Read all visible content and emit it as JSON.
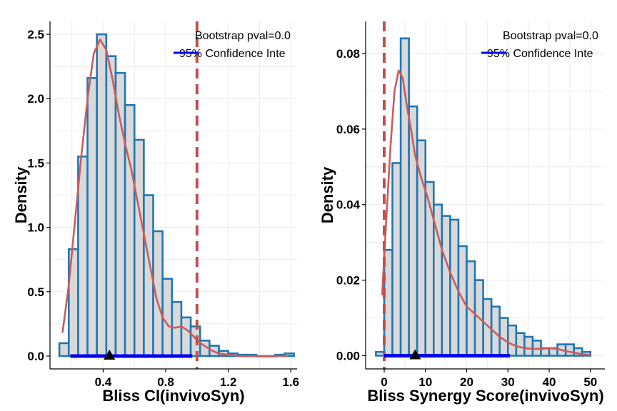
{
  "colors": {
    "bar_fill": "#d9d9d9",
    "bar_stroke": "#1f77b4",
    "density": "#cd5c5c",
    "ci_line": "#0000ee",
    "threshold": "#c0504d",
    "point": "#000000",
    "grid": "#ebebeb"
  },
  "legend": {
    "pval_label": "Bootstrap pval=0.0",
    "ci_label": "95% Confidence Inte"
  },
  "chart_data": [
    {
      "type": "histogram",
      "xlabel": "Bliss CI(invivoSyn)",
      "ylabel": "Density",
      "xlim": [
        0.06,
        1.64
      ],
      "ylim": [
        -0.1,
        2.6
      ],
      "xticks": [
        0.4,
        0.8,
        1.2,
        1.6
      ],
      "xtick_labels": [
        "0.4",
        "0.8",
        "1.2",
        "1.6"
      ],
      "yticks": [
        0.0,
        0.5,
        1.0,
        1.5,
        2.0,
        2.5
      ],
      "ytick_labels": [
        "0.0",
        "0.5",
        "1.0",
        "1.5",
        "2.0",
        "2.5"
      ],
      "bin_edges": [
        0.12,
        0.18,
        0.24,
        0.3,
        0.36,
        0.42,
        0.48,
        0.54,
        0.6,
        0.66,
        0.72,
        0.78,
        0.84,
        0.9,
        0.96,
        1.02,
        1.08,
        1.14,
        1.2,
        1.26,
        1.32,
        1.38,
        1.44,
        1.5,
        1.56,
        1.62
      ],
      "bar_heights": [
        0.1,
        0.83,
        1.55,
        2.16,
        2.5,
        2.33,
        2.2,
        1.95,
        1.68,
        1.25,
        0.97,
        0.6,
        0.42,
        0.3,
        0.23,
        0.12,
        0.08,
        0.04,
        0.02,
        0.01,
        0.01,
        0.0,
        0.0,
        0.01,
        0.02
      ],
      "density_x": [
        0.14,
        0.18,
        0.22,
        0.26,
        0.3,
        0.34,
        0.38,
        0.42,
        0.46,
        0.5,
        0.54,
        0.58,
        0.62,
        0.66,
        0.7,
        0.74,
        0.78,
        0.82,
        0.86,
        0.9,
        0.94,
        0.98,
        1.02,
        1.06,
        1.1,
        1.14,
        1.2,
        1.28,
        1.4,
        1.5,
        1.58
      ],
      "density_y": [
        0.18,
        0.55,
        1.05,
        1.55,
        2.0,
        2.35,
        2.46,
        2.38,
        2.15,
        1.88,
        1.65,
        1.45,
        1.2,
        0.95,
        0.7,
        0.45,
        0.3,
        0.23,
        0.22,
        0.23,
        0.2,
        0.15,
        0.1,
        0.07,
        0.04,
        0.02,
        0.01,
        0.0,
        0.0,
        0.0,
        0.0
      ],
      "ci": [
        0.19,
        0.97
      ],
      "point_estimate": 0.44,
      "threshold": 1.0
    },
    {
      "type": "histogram",
      "xlabel": "Bliss Synergy Score(invivoSyn)",
      "ylabel": "Density",
      "xlim": [
        -4.5,
        53.5
      ],
      "ylim": [
        -0.0035,
        0.0885
      ],
      "xticks": [
        0,
        10,
        20,
        30,
        40,
        50
      ],
      "xtick_labels": [
        "0",
        "10",
        "20",
        "30",
        "40",
        "50"
      ],
      "yticks": [
        0.0,
        0.02,
        0.04,
        0.06,
        0.08
      ],
      "ytick_labels": [
        "0.00",
        "0.02",
        "0.04",
        "0.06",
        "0.08"
      ],
      "bin_edges": [
        -2,
        0,
        2,
        4,
        6,
        8,
        10,
        12,
        14,
        16,
        18,
        20,
        22,
        24,
        26,
        28,
        30,
        32,
        34,
        36,
        38,
        40,
        42,
        44,
        46,
        48,
        50
      ],
      "bar_heights": [
        0.001,
        0.028,
        0.051,
        0.084,
        0.066,
        0.057,
        0.046,
        0.04,
        0.037,
        0.036,
        0.029,
        0.025,
        0.02,
        0.015,
        0.013,
        0.01,
        0.008,
        0.006,
        0.005,
        0.004,
        0.002,
        0.002,
        0.003,
        0.003,
        0.002,
        0.001
      ],
      "density_x": [
        -0.5,
        0.5,
        1.5,
        2.5,
        3.5,
        4.5,
        5.5,
        6.5,
        7.5,
        9,
        10.5,
        12,
        14,
        16,
        18,
        20,
        22,
        24,
        26,
        28,
        30,
        32,
        34,
        36,
        38,
        40,
        42,
        44,
        46,
        48,
        50
      ],
      "density_y": [
        0.016,
        0.036,
        0.055,
        0.07,
        0.0755,
        0.0735,
        0.066,
        0.06,
        0.053,
        0.047,
        0.042,
        0.036,
        0.028,
        0.022,
        0.017,
        0.013,
        0.011,
        0.009,
        0.007,
        0.005,
        0.0035,
        0.0025,
        0.002,
        0.0018,
        0.0018,
        0.002,
        0.0018,
        0.0012,
        0.0008,
        0.0004,
        0.0002
      ],
      "ci": [
        0.0,
        30.5
      ],
      "point_estimate": 7.5,
      "threshold": 0.0
    }
  ]
}
